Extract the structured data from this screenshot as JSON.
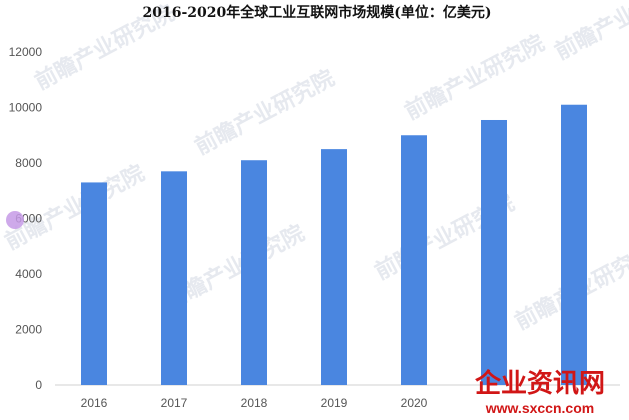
{
  "chart_data": {
    "type": "bar",
    "title": "2016-2020年全球工业互联网市场规模(单位：亿美元)",
    "categories": [
      "2016",
      "2017",
      "2018",
      "2019",
      "2020",
      "",
      ""
    ],
    "values": [
      7300,
      7700,
      8100,
      8500,
      9000,
      9550,
      10100
    ],
    "ylim": [
      0,
      12000
    ],
    "yticks": [
      0,
      2000,
      4000,
      6000,
      8000,
      10000,
      12000
    ],
    "grid": false,
    "bar_color": "#4a86e0"
  },
  "watermark": {
    "text": "前瞻产业研究院",
    "logo_main": "企业资讯网",
    "logo_url": "www.sxccn.com"
  }
}
